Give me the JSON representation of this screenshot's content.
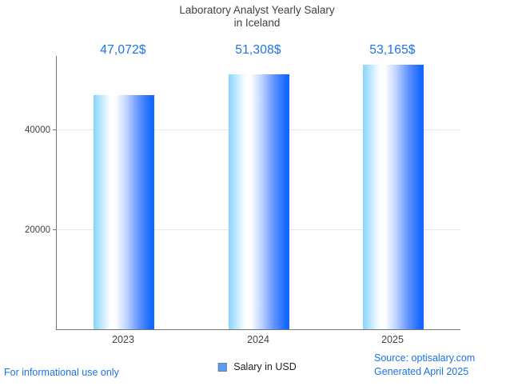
{
  "title": "Laboratory Analyst Yearly Salary",
  "subtitle": "in Iceland",
  "chart_data": {
    "type": "bar",
    "categories": [
      "2023",
      "2024",
      "2025"
    ],
    "series": [
      {
        "name": "Salary in USD",
        "values": [
          47072,
          51308,
          53165
        ]
      }
    ],
    "value_labels": [
      "47,072$",
      "51,308$",
      "53,165$"
    ],
    "title": "Laboratory Analyst Yearly Salary in Iceland",
    "xlabel": "",
    "ylabel": "",
    "ylim": [
      0,
      55000
    ],
    "yticks": [
      20000,
      40000
    ],
    "grid": true,
    "legend_position": "bottom"
  },
  "legend": {
    "label": "Salary in USD",
    "marker_color": "#5b9cf8"
  },
  "footer": {
    "disclaimer": "For informational use only",
    "source": "Source: optisalary.com",
    "generated": "Generated April 2025"
  },
  "colors": {
    "accent_text": "#1a73e8",
    "title_text": "#424242",
    "axis_text": "#424242",
    "axis_line": "#757575",
    "gridline": "#e8e8e8",
    "bar_gradient_left": "#87d4fb",
    "bar_gradient_mid": "#ffffff",
    "bar_gradient_right": "#1467ff"
  }
}
